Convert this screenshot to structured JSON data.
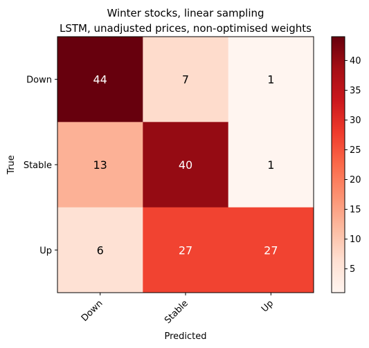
{
  "chart_data": {
    "type": "heatmap",
    "title": [
      "Winter stocks, linear sampling",
      "LSTM, unadjusted prices, non-optimised weights"
    ],
    "xlabel": "Predicted",
    "ylabel": "True",
    "x_categories": [
      "Down",
      "Stable",
      "Up"
    ],
    "y_categories": [
      "Down",
      "Stable",
      "Up"
    ],
    "values": [
      [
        44,
        7,
        1
      ],
      [
        13,
        40,
        1
      ],
      [
        6,
        27,
        27
      ]
    ],
    "colorbar": {
      "colormap": "Reds",
      "range": [
        1,
        44
      ],
      "ticks": [
        "5",
        "10",
        "15",
        "20",
        "25",
        "30",
        "35",
        "40"
      ]
    }
  }
}
